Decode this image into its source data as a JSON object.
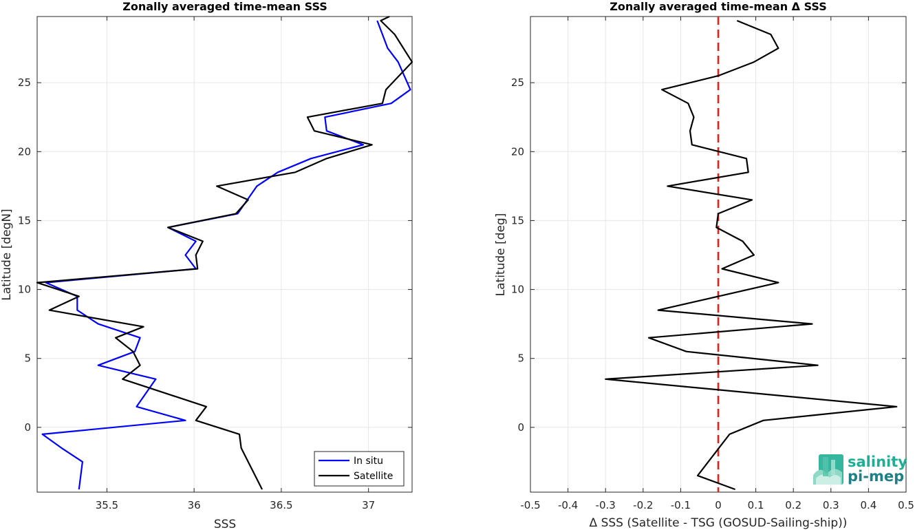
{
  "chart_data": [
    {
      "type": "line",
      "title": "Zonally averaged time-mean SSS",
      "xlabel": "SSS",
      "ylabel": "Latitude [degN]",
      "xlim": [
        35.1,
        37.25
      ],
      "ylim": [
        -4.7,
        29.8
      ],
      "xticks": [
        "35.5",
        "36",
        "36.5",
        "37"
      ],
      "xtick_values": [
        35.5,
        36.0,
        36.5,
        37.0
      ],
      "yticks": [
        "0",
        "5",
        "10",
        "15",
        "20",
        "25"
      ],
      "ytick_values": [
        0,
        5,
        10,
        15,
        20,
        25
      ],
      "grid": true,
      "legend_position": "bottom-right",
      "series": [
        {
          "name": "In situ",
          "color": "#0000ff",
          "x": [
            35.34,
            35.36,
            35.24,
            35.13,
            35.95,
            35.67,
            35.78,
            35.45,
            35.66,
            35.69,
            35.45,
            35.33,
            35.33,
            35.15,
            36.01,
            35.95,
            36.01,
            35.85,
            36.25,
            36.36,
            36.48,
            36.67,
            36.97,
            36.76,
            36.75,
            37.13,
            37.24,
            37.17,
            37.11,
            37.05
          ],
          "y": [
            -4.5,
            -2.5,
            -1.5,
            -0.5,
            0.5,
            1.5,
            3.5,
            4.5,
            5.5,
            6.5,
            7.5,
            8.5,
            9.5,
            10.5,
            11.5,
            12.5,
            13.5,
            14.5,
            15.5,
            17.5,
            18.5,
            19.5,
            20.5,
            21.5,
            22.5,
            23.5,
            24.5,
            26.5,
            27.5,
            29.5
          ]
        },
        {
          "name": "Satellite",
          "color": "#000000",
          "x": [
            36.39,
            36.35,
            36.31,
            36.27,
            36.26,
            36.01,
            36.07,
            35.59,
            35.69,
            35.65,
            35.55,
            35.71,
            35.17,
            35.34,
            35.1,
            36.02,
            36.01,
            36.05,
            35.85,
            36.24,
            36.31,
            36.13,
            36.58,
            36.76,
            37.02,
            36.69,
            36.65,
            37.08,
            37.1,
            37.25,
            37.15,
            37.07,
            37.12
          ],
          "y": [
            -4.5,
            -3.5,
            -2.5,
            -1.5,
            -0.5,
            0.5,
            1.5,
            3.5,
            4.5,
            5.5,
            6.5,
            7.3,
            8.5,
            9.5,
            10.5,
            11.5,
            12.5,
            13.5,
            14.5,
            15.5,
            16.5,
            17.5,
            18.5,
            19.5,
            20.5,
            21.5,
            22.5,
            23.5,
            24.5,
            26.5,
            28.5,
            29.5,
            29.8
          ]
        }
      ]
    },
    {
      "type": "line",
      "title": "Zonally averaged time-mean Δ SSS",
      "xlabel": "Δ SSS (Satellite - TSG (GOSUD-Sailing-ship))",
      "ylabel": "Latitude [deg]",
      "xlim": [
        -0.5,
        0.5
      ],
      "ylim": [
        -4.7,
        29.8
      ],
      "xticks": [
        "-0.5",
        "-0.4",
        "-0.3",
        "-0.2",
        "-0.1",
        "0",
        "0.1",
        "0.2",
        "0.3",
        "0.4",
        "0.5"
      ],
      "xtick_values": [
        -0.5,
        -0.4,
        -0.3,
        -0.2,
        -0.1,
        0,
        0.1,
        0.2,
        0.3,
        0.4,
        0.5
      ],
      "yticks": [
        "0",
        "5",
        "10",
        "15",
        "20",
        "25"
      ],
      "ytick_values": [
        0,
        5,
        10,
        15,
        20,
        25
      ],
      "grid": true,
      "reference_line": {
        "x": 0,
        "color": "#e8201a",
        "style": "dashed"
      },
      "series": [
        {
          "name": "",
          "color": "#000000",
          "x": [
            0.045,
            -0.055,
            0.03,
            0.12,
            0.475,
            -0.3,
            0.265,
            -0.085,
            -0.185,
            0.25,
            -0.16,
            0.16,
            0.01,
            0.095,
            0.065,
            -0.005,
            0.0,
            0.09,
            -0.135,
            0.08,
            0.075,
            -0.07,
            -0.075,
            -0.065,
            -0.08,
            -0.15,
            0.0,
            0.095,
            0.16,
            0.14,
            0.05
          ],
          "y": [
            -4.5,
            -3.5,
            -0.5,
            0.5,
            1.5,
            3.5,
            4.5,
            5.5,
            6.5,
            7.5,
            8.5,
            10.5,
            11.5,
            12.5,
            13.5,
            14.5,
            15.5,
            16.5,
            17.5,
            18.5,
            19.5,
            20.5,
            21.5,
            22.5,
            23.5,
            24.5,
            25.5,
            26.5,
            27.5,
            28.5,
            29.5
          ]
        }
      ]
    }
  ],
  "logo": {
    "line1": "salinity",
    "line2": "pi-mep",
    "color": "#1fae94"
  }
}
